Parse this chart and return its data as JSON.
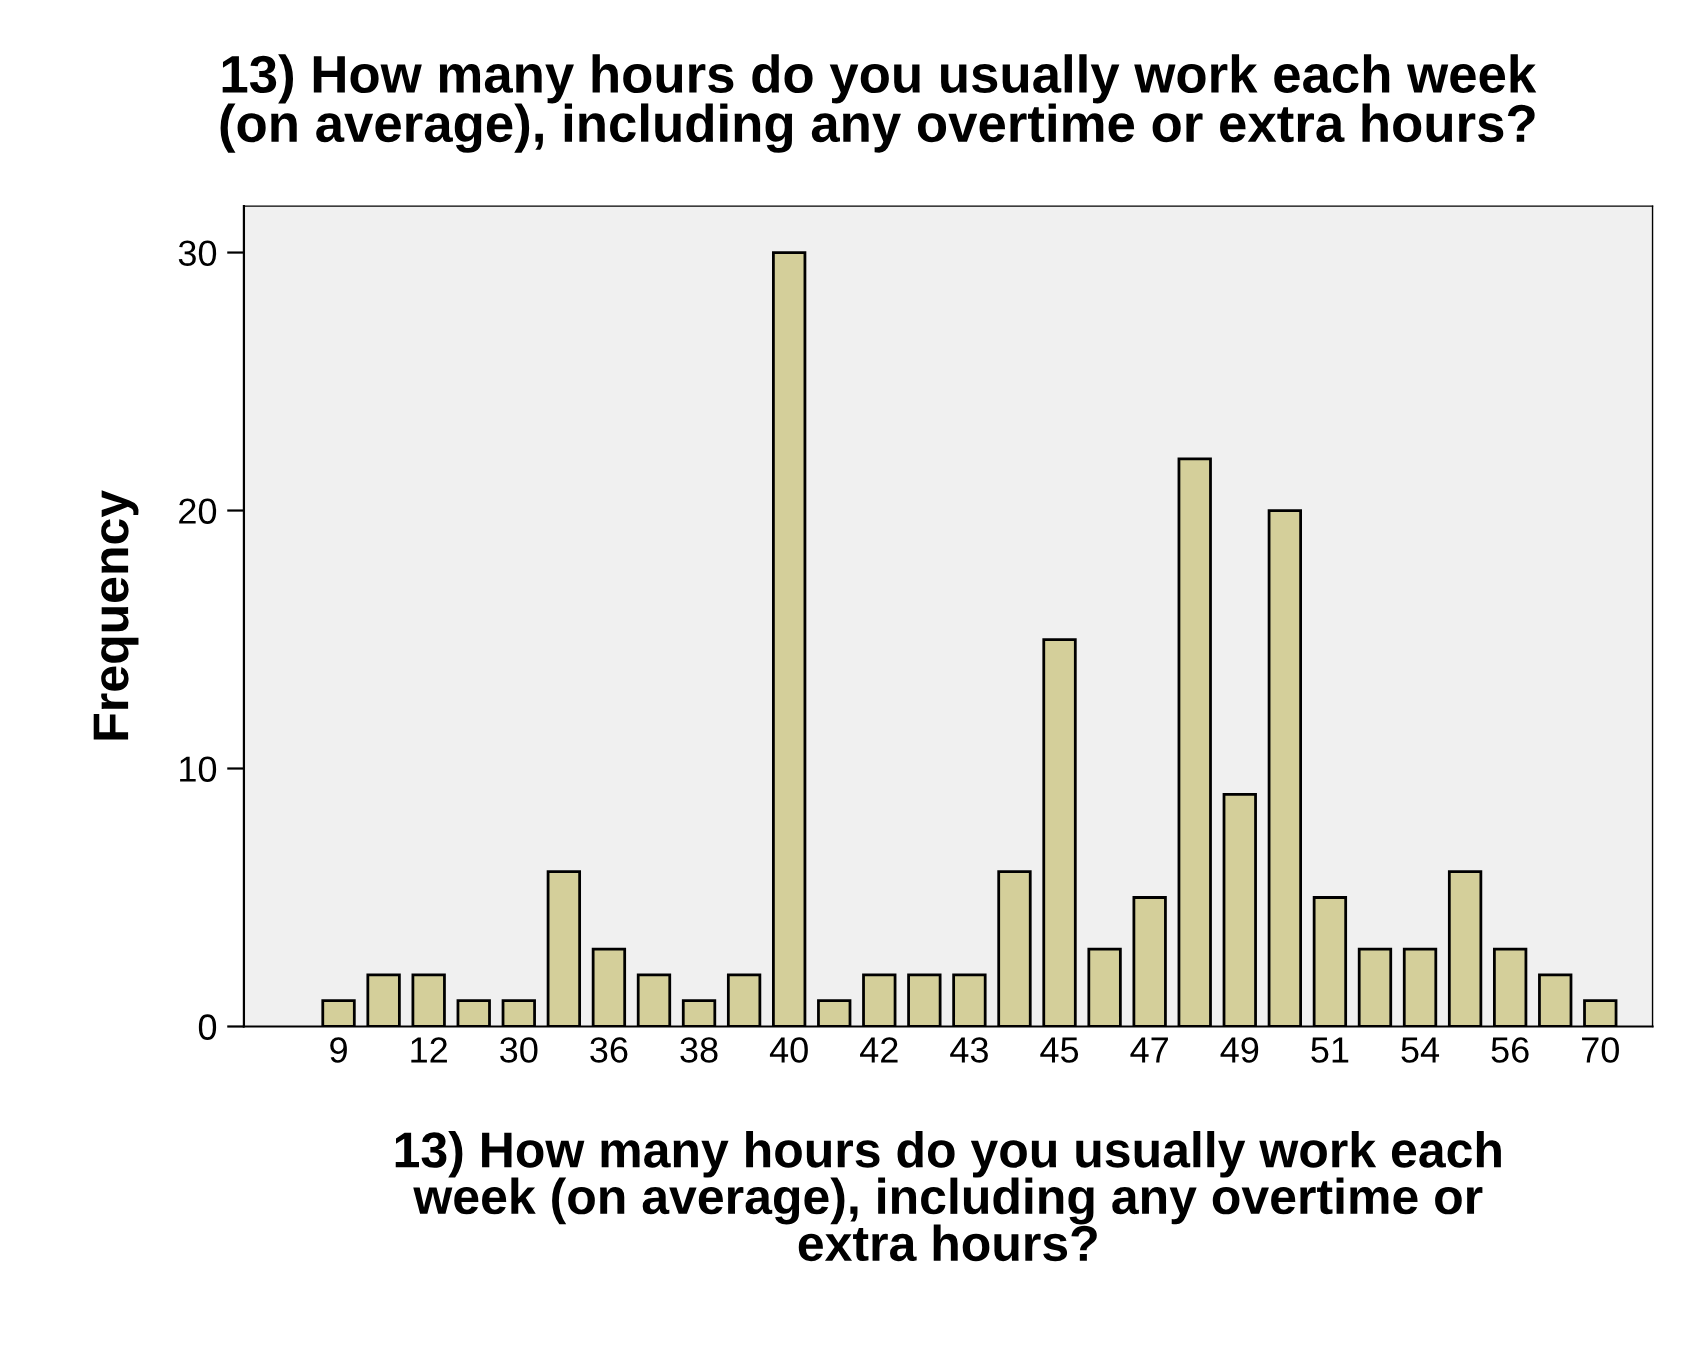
{
  "chart_data": {
    "type": "bar",
    "title": "13) How many hours do you usually work each week\n(on average), including any overtime or extra hours?",
    "xlabel": "13) How many hours do you usually work each\nweek (on average), including any overtime or\nextra hours?",
    "ylabel": "Frequency",
    "categories": [
      "9",
      null,
      "12",
      null,
      "30",
      null,
      "36",
      null,
      "38",
      null,
      "40",
      null,
      "42",
      null,
      "43",
      null,
      "45",
      null,
      "47",
      null,
      "49",
      null,
      "51",
      null,
      "54",
      null,
      "56",
      null,
      "70"
    ],
    "values": [
      1,
      2,
      2,
      1,
      1,
      6,
      3,
      2,
      1,
      2,
      30,
      1,
      2,
      2,
      2,
      6,
      15,
      3,
      5,
      22,
      9,
      20,
      5,
      3,
      3,
      6,
      3,
      2,
      1
    ],
    "color": "#d4cf9a",
    "ylim": [
      0,
      31.8
    ],
    "yticks": [
      0,
      10,
      20,
      30
    ],
    "grid": false,
    "legend": false
  }
}
